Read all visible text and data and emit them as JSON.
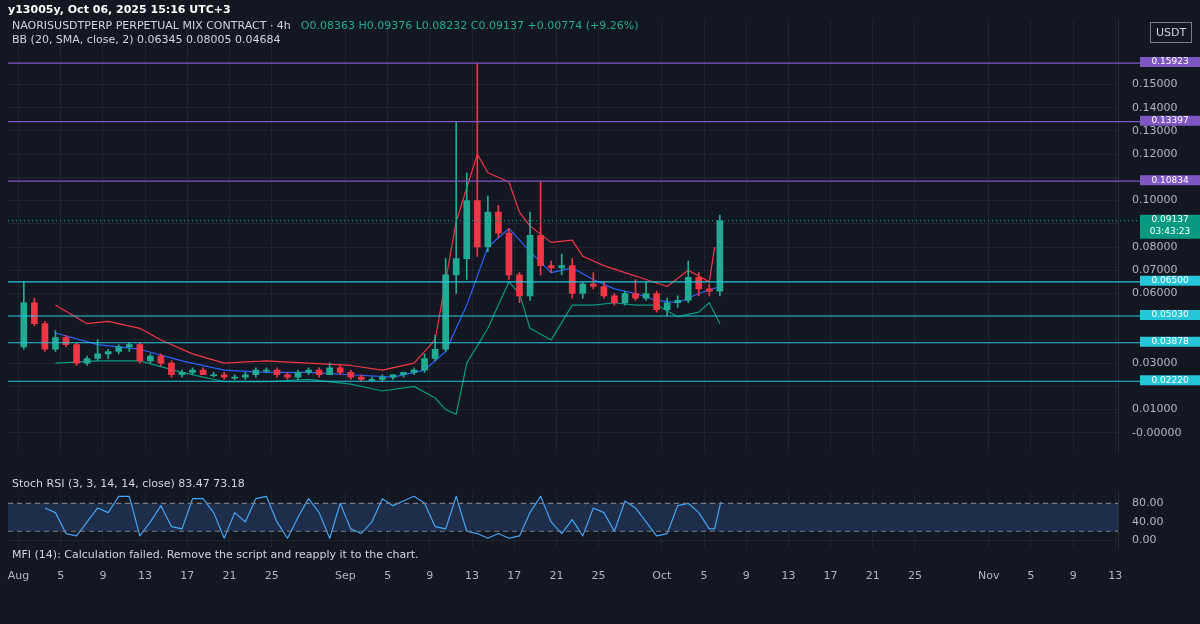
{
  "chart_data": [
    {
      "type": "candlestick",
      "title": "NAORISUSDTPERP PERPETUAL MIX CONTRACT · 4h",
      "subtitle": "O0.08363 H0.09376 L0.08232 C0.09137 +0.00774 (+9.26%)",
      "annotations": [
        "y13005y, Oct 06, 2025 15:16 UTC+3",
        "BB (20, SMA, close, 2) 0.06345 0.08005 0.04684",
        "USDT"
      ],
      "x": [
        "2025-08-01T12:00",
        "2025-08-02T12:00",
        "2025-08-03T12:00",
        "2025-08-04T12:00",
        "2025-08-05T12:00",
        "2025-08-06T12:00",
        "2025-08-07T12:00",
        "2025-08-08T12:00",
        "2025-08-09T12:00",
        "2025-08-10T12:00",
        "2025-08-11T12:00",
        "2025-08-12T12:00",
        "2025-08-13T12:00",
        "2025-08-14T12:00",
        "2025-08-15T12:00",
        "2025-08-16T12:00",
        "2025-08-17T12:00",
        "2025-08-18T12:00",
        "2025-08-19T12:00",
        "2025-08-20T12:00",
        "2025-08-21T12:00",
        "2025-08-22T12:00",
        "2025-08-23T12:00",
        "2025-08-24T12:00",
        "2025-08-25T12:00",
        "2025-08-26T12:00",
        "2025-08-27T12:00",
        "2025-08-28T12:00",
        "2025-08-29T12:00",
        "2025-08-30T12:00",
        "2025-08-31T12:00",
        "2025-09-01T12:00",
        "2025-09-02T12:00",
        "2025-09-03T12:00",
        "2025-09-04T12:00",
        "2025-09-05T12:00",
        "2025-09-06T12:00",
        "2025-09-07T12:00",
        "2025-09-08T12:00",
        "2025-09-09T12:00",
        "2025-09-10T12:00",
        "2025-09-11T12:00",
        "2025-09-12T12:00",
        "2025-09-13T12:00",
        "2025-09-14T12:00",
        "2025-09-15T12:00",
        "2025-09-16T12:00",
        "2025-09-17T12:00",
        "2025-09-18T12:00",
        "2025-09-19T12:00",
        "2025-09-20T12:00",
        "2025-09-21T12:00",
        "2025-09-22T12:00",
        "2025-09-23T12:00",
        "2025-09-24T12:00",
        "2025-09-25T12:00",
        "2025-09-26T12:00",
        "2025-09-27T12:00",
        "2025-09-28T12:00",
        "2025-09-29T12:00",
        "2025-09-30T12:00",
        "2025-10-01T12:00",
        "2025-10-02T12:00",
        "2025-10-03T12:00",
        "2025-10-04T12:00",
        "2025-10-05T12:00",
        "2025-10-06T12:00"
      ],
      "ohlc": [
        [
          0.037,
          0.065,
          0.036,
          0.056
        ],
        [
          0.056,
          0.058,
          0.046,
          0.047
        ],
        [
          0.047,
          0.048,
          0.035,
          0.036
        ],
        [
          0.036,
          0.044,
          0.035,
          0.041
        ],
        [
          0.041,
          0.042,
          0.037,
          0.038
        ],
        [
          0.038,
          0.039,
          0.029,
          0.03
        ],
        [
          0.03,
          0.033,
          0.029,
          0.032
        ],
        [
          0.032,
          0.04,
          0.031,
          0.034
        ],
        [
          0.034,
          0.036,
          0.032,
          0.035
        ],
        [
          0.035,
          0.038,
          0.034,
          0.037
        ],
        [
          0.037,
          0.039,
          0.035,
          0.038
        ],
        [
          0.038,
          0.039,
          0.03,
          0.031
        ],
        [
          0.031,
          0.034,
          0.03,
          0.033
        ],
        [
          0.033,
          0.034,
          0.029,
          0.03
        ],
        [
          0.03,
          0.031,
          0.024,
          0.025
        ],
        [
          0.025,
          0.027,
          0.024,
          0.026
        ],
        [
          0.026,
          0.028,
          0.025,
          0.027
        ],
        [
          0.027,
          0.028,
          0.025,
          0.025
        ],
        [
          0.025,
          0.026,
          0.024,
          0.025
        ],
        [
          0.025,
          0.026,
          0.023,
          0.024
        ],
        [
          0.024,
          0.025,
          0.023,
          0.024
        ],
        [
          0.024,
          0.026,
          0.023,
          0.025
        ],
        [
          0.025,
          0.028,
          0.024,
          0.027
        ],
        [
          0.027,
          0.028,
          0.026,
          0.027
        ],
        [
          0.027,
          0.028,
          0.024,
          0.025
        ],
        [
          0.025,
          0.026,
          0.023,
          0.024
        ],
        [
          0.024,
          0.027,
          0.023,
          0.026
        ],
        [
          0.026,
          0.028,
          0.025,
          0.027
        ],
        [
          0.027,
          0.028,
          0.024,
          0.025
        ],
        [
          0.025,
          0.03,
          0.025,
          0.028
        ],
        [
          0.028,
          0.029,
          0.025,
          0.026
        ],
        [
          0.026,
          0.027,
          0.023,
          0.024
        ],
        [
          0.024,
          0.025,
          0.022,
          0.023
        ],
        [
          0.023,
          0.024,
          0.022,
          0.023
        ],
        [
          0.023,
          0.025,
          0.022,
          0.024
        ],
        [
          0.024,
          0.025,
          0.023,
          0.025
        ],
        [
          0.025,
          0.026,
          0.024,
          0.026
        ],
        [
          0.026,
          0.028,
          0.025,
          0.027
        ],
        [
          0.027,
          0.034,
          0.026,
          0.032
        ],
        [
          0.032,
          0.042,
          0.031,
          0.036
        ],
        [
          0.036,
          0.075,
          0.035,
          0.068
        ],
        [
          0.068,
          0.13397,
          0.06,
          0.075
        ],
        [
          0.075,
          0.112,
          0.066,
          0.1
        ],
        [
          0.1,
          0.15923,
          0.076,
          0.08
        ],
        [
          0.08,
          0.102,
          0.078,
          0.095
        ],
        [
          0.095,
          0.098,
          0.084,
          0.086
        ],
        [
          0.086,
          0.088,
          0.066,
          0.068
        ],
        [
          0.068,
          0.069,
          0.056,
          0.059
        ],
        [
          0.059,
          0.095,
          0.057,
          0.085
        ],
        [
          0.085,
          0.10834,
          0.068,
          0.072
        ],
        [
          0.072,
          0.074,
          0.069,
          0.071
        ],
        [
          0.071,
          0.077,
          0.068,
          0.072
        ],
        [
          0.072,
          0.075,
          0.058,
          0.06
        ],
        [
          0.06,
          0.065,
          0.058,
          0.064
        ],
        [
          0.064,
          0.069,
          0.062,
          0.063
        ],
        [
          0.063,
          0.065,
          0.058,
          0.059
        ],
        [
          0.059,
          0.06,
          0.055,
          0.056
        ],
        [
          0.056,
          0.061,
          0.055,
          0.06
        ],
        [
          0.06,
          0.066,
          0.057,
          0.058
        ],
        [
          0.058,
          0.065,
          0.057,
          0.06
        ],
        [
          0.06,
          0.061,
          0.052,
          0.053
        ],
        [
          0.053,
          0.058,
          0.0503,
          0.056
        ],
        [
          0.056,
          0.059,
          0.054,
          0.057
        ],
        [
          0.057,
          0.074,
          0.056,
          0.067
        ],
        [
          0.067,
          0.069,
          0.059,
          0.062
        ],
        [
          0.062,
          0.064,
          0.059,
          0.061
        ],
        [
          0.061,
          0.09376,
          0.059,
          0.09137
        ]
      ],
      "colors": [
        "#22ab94",
        "#f23645",
        "#f23645",
        "#22ab94",
        "#f23645",
        "#f23645",
        "#22ab94",
        "#22ab94",
        "#22ab94",
        "#22ab94",
        "#22ab94",
        "#f23645",
        "#22ab94",
        "#f23645",
        "#f23645",
        "#22ab94",
        "#22ab94",
        "#f23645",
        "#22ab94",
        "#f23645",
        "#22ab94",
        "#22ab94",
        "#22ab94",
        "#22ab94",
        "#f23645",
        "#f23645",
        "#22ab94",
        "#22ab94",
        "#f23645",
        "#22ab94",
        "#f23645",
        "#f23645",
        "#f23645",
        "#22ab94",
        "#22ab94",
        "#22ab94",
        "#22ab94",
        "#22ab94",
        "#22ab94",
        "#22ab94",
        "#22ab94",
        "#22ab94",
        "#22ab94",
        "#f23645",
        "#22ab94",
        "#f23645",
        "#f23645",
        "#f23645",
        "#22ab94",
        "#f23645",
        "#f23645",
        "#22ab94",
        "#f23645",
        "#22ab94",
        "#f23645",
        "#f23645",
        "#f23645",
        "#22ab94",
        "#f23645",
        "#22ab94",
        "#f23645",
        "#22ab94",
        "#22ab94",
        "#22ab94",
        "#f23645",
        "#f23645",
        "#22ab94"
      ],
      "series": [
        {
          "type": "line",
          "color": "#f23645",
          "x": [
            "2025-08-04T12:00",
            "2025-08-07T12:00",
            "2025-08-09T12:00",
            "2025-08-12T12:00",
            "2025-08-14T12:00",
            "2025-08-17T12:00",
            "2025-08-20T12:00",
            "2025-08-24T12:00",
            "2025-08-28T12:00",
            "2025-09-01T12:00",
            "2025-09-04T12:00",
            "2025-09-07T12:00",
            "2025-09-09T12:00",
            "2025-09-11T12:00",
            "2025-09-13T12:00",
            "2025-09-14T12:00",
            "2025-09-16T12:00",
            "2025-09-17T12:00",
            "2025-09-18T12:00",
            "2025-09-20T12:00",
            "2025-09-22T12:00",
            "2025-09-23T12:00",
            "2025-09-25T12:00",
            "2025-09-27T12:00",
            "2025-09-29T12:00",
            "2025-10-01T12:00",
            "2025-10-03T12:00",
            "2025-10-05T12:00",
            "2025-10-06T00:00"
          ],
          "values": [
            0.055,
            0.047,
            0.048,
            0.045,
            0.04,
            0.034,
            0.03,
            0.031,
            0.03,
            0.029,
            0.027,
            0.03,
            0.04,
            0.091,
            0.12,
            0.112,
            0.108,
            0.095,
            0.089,
            0.082,
            0.083,
            0.076,
            0.072,
            0.069,
            0.066,
            0.063,
            0.07,
            0.065,
            0.08
          ]
        },
        {
          "type": "line",
          "color": "#2962ff",
          "x": [
            "2025-08-04T12:00",
            "2025-08-08T12:00",
            "2025-08-12T12:00",
            "2025-08-16T12:00",
            "2025-08-20T12:00",
            "2025-08-24T12:00",
            "2025-08-28T12:00",
            "2025-09-01T12:00",
            "2025-09-05T12:00",
            "2025-09-08T12:00",
            "2025-09-10T12:00",
            "2025-09-12T12:00",
            "2025-09-14T12:00",
            "2025-09-16T12:00",
            "2025-09-18T12:00",
            "2025-09-20T12:00",
            "2025-09-22T12:00",
            "2025-09-24T12:00",
            "2025-09-26T12:00",
            "2025-09-28T12:00",
            "2025-09-30T12:00",
            "2025-10-02T12:00",
            "2025-10-04T12:00",
            "2025-10-06T12:00"
          ],
          "values": [
            0.043,
            0.038,
            0.036,
            0.031,
            0.027,
            0.026,
            0.026,
            0.025,
            0.024,
            0.027,
            0.035,
            0.055,
            0.08,
            0.088,
            0.078,
            0.069,
            0.071,
            0.066,
            0.062,
            0.06,
            0.057,
            0.056,
            0.06,
            0.063
          ]
        },
        {
          "type": "line",
          "color": "#089981",
          "x": [
            "2025-08-04T12:00",
            "2025-08-08T12:00",
            "2025-08-12T12:00",
            "2025-08-16T12:00",
            "2025-08-20T12:00",
            "2025-08-24T12:00",
            "2025-08-28T12:00",
            "2025-09-01T12:00",
            "2025-09-04T12:00",
            "2025-09-07T12:00",
            "2025-09-09T12:00",
            "2025-09-10T12:00",
            "2025-09-11T12:00",
            "2025-09-12T12:00",
            "2025-09-14T12:00",
            "2025-09-16T12:00",
            "2025-09-17T12:00",
            "2025-09-18T12:00",
            "2025-09-20T12:00",
            "2025-09-22T12:00",
            "2025-09-24T12:00",
            "2025-09-26T12:00",
            "2025-09-28T12:00",
            "2025-09-30T12:00",
            "2025-10-02T12:00",
            "2025-10-04T12:00",
            "2025-10-05T12:00",
            "2025-10-06T12:00"
          ],
          "values": [
            0.03,
            0.031,
            0.031,
            0.026,
            0.022,
            0.022,
            0.023,
            0.021,
            0.018,
            0.02,
            0.015,
            0.01,
            0.008,
            0.03,
            0.045,
            0.065,
            0.06,
            0.045,
            0.04,
            0.055,
            0.055,
            0.056,
            0.055,
            0.055,
            0.05,
            0.052,
            0.056,
            0.047
          ]
        }
      ],
      "ref_lines": [
        {
          "axis": "y",
          "value": 0.15923,
          "label": "0.15923",
          "color": "#7e57c2"
        },
        {
          "axis": "y",
          "value": 0.13397,
          "label": "0.13397",
          "color": "#7e57c2"
        },
        {
          "axis": "y",
          "value": 0.10834,
          "label": "0.10834",
          "color": "#7e57c2"
        },
        {
          "axis": "y",
          "value": 0.09137,
          "label": "0.09137\n03:43:23",
          "color": "#089981",
          "line_style": "dotted"
        },
        {
          "axis": "y",
          "value": 0.065,
          "label": "0.06500",
          "color": "#26c6da"
        },
        {
          "axis": "y",
          "value": 0.0503,
          "label": "0.05030",
          "color": "#26c6da"
        },
        {
          "axis": "y",
          "value": 0.03878,
          "label": "0.03878",
          "color": "#26c6da"
        },
        {
          "axis": "y",
          "value": 0.0222,
          "label": "0.02220",
          "color": "#26c6da"
        }
      ],
      "xlim": [
        "2025-07-31T00:00",
        "2025-11-13T06:00"
      ],
      "xticks": [
        "2025-08-01",
        "2025-08-05",
        "2025-08-09",
        "2025-08-13",
        "2025-08-17",
        "2025-08-21",
        "2025-08-25",
        "2025-09-01",
        "2025-09-05",
        "2025-09-09",
        "2025-09-13",
        "2025-09-17",
        "2025-09-21",
        "2025-09-25",
        "2025-10-01",
        "2025-10-05",
        "2025-10-09",
        "2025-10-13",
        "2025-10-17",
        "2025-10-21",
        "2025-10-25",
        "2025-11-01",
        "2025-11-05",
        "2025-11-09",
        "2025-11-13"
      ],
      "ylim": [
        -0.008,
        0.1775
      ],
      "yticks": [
        {
          "value": 0.15,
          "label": "0.15000"
        },
        {
          "value": 0.14,
          "label": "0.14000"
        },
        {
          "value": 0.13,
          "label": "0.13000"
        },
        {
          "value": 0.12,
          "label": "0.12000"
        },
        {
          "value": 0.11,
          "label": null
        },
        {
          "value": 0.1,
          "label": "0.10000"
        },
        {
          "value": 0.09,
          "label": null
        },
        {
          "value": 0.08,
          "label": "0.08000"
        },
        {
          "value": 0.07,
          "label": "0.07000"
        },
        {
          "value": 0.06,
          "label": "0.06000"
        },
        {
          "value": 0.05,
          "label": null
        },
        {
          "value": 0.04,
          "label": null
        },
        {
          "value": 0.03,
          "label": "0.03000"
        },
        {
          "value": 0.02,
          "label": null
        },
        {
          "value": 0.01,
          "label": "0.01000"
        },
        {
          "value": 0,
          "label": "-0.00000"
        }
      ],
      "grid": true,
      "tick_labels": "y",
      "marker": "none"
    },
    {
      "type": "line",
      "title": "Stoch RSI (3, 3, 14, 14, close) 83.47 73.18",
      "annotations": [
        "MFI (14): Calculation failed. Remove the script and reapply it to the chart."
      ],
      "series": [
        {
          "color": "#42a5f5",
          "x": [
            "2025-08-03T12:00",
            "2025-08-04T12:00",
            "2025-08-05T12:00",
            "2025-08-06T12:00",
            "2025-08-07T12:00",
            "2025-08-08T12:00",
            "2025-08-09T12:00",
            "2025-08-10T12:00",
            "2025-08-11T12:00",
            "2025-08-12T12:00",
            "2025-08-13T12:00",
            "2025-08-14T12:00",
            "2025-08-15T12:00",
            "2025-08-16T12:00",
            "2025-08-17T12:00",
            "2025-08-18T12:00",
            "2025-08-19T12:00",
            "2025-08-20T12:00",
            "2025-08-21T12:00",
            "2025-08-22T12:00",
            "2025-08-23T12:00",
            "2025-08-24T12:00",
            "2025-08-25T12:00",
            "2025-08-26T12:00",
            "2025-08-27T12:00",
            "2025-08-28T12:00",
            "2025-08-29T12:00",
            "2025-08-30T12:00",
            "2025-08-31T12:00",
            "2025-09-01T12:00",
            "2025-09-02T12:00",
            "2025-09-03T12:00",
            "2025-09-04T12:00",
            "2025-09-05T12:00",
            "2025-09-06T12:00",
            "2025-09-07T12:00",
            "2025-09-08T12:00",
            "2025-09-09T12:00",
            "2025-09-10T12:00",
            "2025-09-11T12:00",
            "2025-09-12T12:00",
            "2025-09-13T12:00",
            "2025-09-14T12:00",
            "2025-09-15T12:00",
            "2025-09-16T12:00",
            "2025-09-17T12:00",
            "2025-09-18T12:00",
            "2025-09-19T12:00",
            "2025-09-20T12:00",
            "2025-09-21T12:00",
            "2025-09-22T12:00",
            "2025-09-23T12:00",
            "2025-09-24T12:00",
            "2025-09-25T12:00",
            "2025-09-26T12:00",
            "2025-09-27T12:00",
            "2025-09-28T12:00",
            "2025-09-29T12:00",
            "2025-09-30T12:00",
            "2025-10-01T12:00",
            "2025-10-02T12:00",
            "2025-10-03T12:00",
            "2025-10-04T12:00",
            "2025-10-05T12:00",
            "2025-10-06T00:00",
            "2025-10-06T14:00"
          ],
          "values": [
            70,
            60,
            15,
            10,
            40,
            70,
            60,
            95,
            95,
            10,
            40,
            75,
            30,
            25,
            90,
            90,
            60,
            5,
            60,
            40,
            90,
            95,
            40,
            5,
            50,
            90,
            60,
            5,
            80,
            25,
            15,
            40,
            90,
            75,
            85,
            95,
            80,
            30,
            25,
            95,
            20,
            15,
            5,
            15,
            5,
            10,
            60,
            95,
            40,
            15,
            45,
            10,
            70,
            60,
            20,
            85,
            70,
            40,
            10,
            15,
            75,
            80,
            60,
            25,
            25,
            83
          ]
        }
      ],
      "bands": [
        {
          "axis": "y",
          "from": 20,
          "to": 80,
          "color": "#1e2d4a"
        }
      ],
      "ref_lines": [
        {
          "axis": "y",
          "value": 80,
          "label": null,
          "color": "#787b86",
          "line_style": "dashed"
        },
        {
          "axis": "y",
          "value": 20,
          "label": null,
          "color": "#787b86",
          "line_style": "dashed"
        }
      ],
      "xlim": [
        "2025-07-31T00:00",
        "2025-11-13T06:00"
      ],
      "xticks": [
        {
          "value": "2025-08-01",
          "label": "Aug"
        },
        {
          "value": "2025-08-05",
          "label": "5"
        },
        {
          "value": "2025-08-09",
          "label": "9"
        },
        {
          "value": "2025-08-13",
          "label": "13"
        },
        {
          "value": "2025-08-17",
          "label": "17"
        },
        {
          "value": "2025-08-21",
          "label": "21"
        },
        {
          "value": "2025-08-25",
          "label": "25"
        },
        {
          "value": "2025-09-01",
          "label": "Sep"
        },
        {
          "value": "2025-09-05",
          "label": "5"
        },
        {
          "value": "2025-09-09",
          "label": "9"
        },
        {
          "value": "2025-09-13",
          "label": "13"
        },
        {
          "value": "2025-09-17",
          "label": "17"
        },
        {
          "value": "2025-09-21",
          "label": "21"
        },
        {
          "value": "2025-09-25",
          "label": "25"
        },
        {
          "value": "2025-10-01",
          "label": "Oct"
        },
        {
          "value": "2025-10-05",
          "label": "5"
        },
        {
          "value": "2025-10-09",
          "label": "9"
        },
        {
          "value": "2025-10-13",
          "label": "13"
        },
        {
          "value": "2025-10-17",
          "label": "17"
        },
        {
          "value": "2025-10-21",
          "label": "21"
        },
        {
          "value": "2025-10-25",
          "label": "25"
        },
        {
          "value": "2025-11-01",
          "label": "Nov"
        },
        {
          "value": "2025-11-05",
          "label": "5"
        },
        {
          "value": "2025-11-09",
          "label": "9"
        },
        {
          "value": "2025-11-13",
          "label": "13"
        }
      ],
      "ylim": [
        -16,
        103
      ],
      "yticks": [
        {
          "value": 0,
          "label": "0.00"
        },
        {
          "value": 40,
          "label": "40.00"
        },
        {
          "value": 80,
          "label": "80.00"
        }
      ],
      "grid": true,
      "marker": "none",
      "line_style": "solid"
    }
  ]
}
